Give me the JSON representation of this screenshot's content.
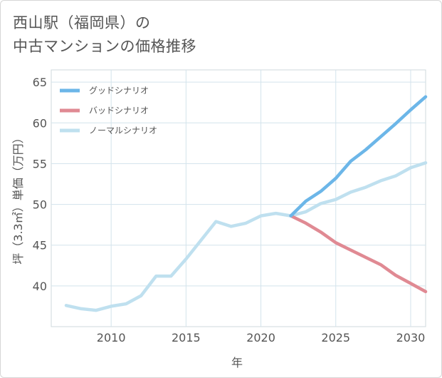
{
  "page": {
    "title_line1": "西山駅（福岡県）の",
    "title_line2": "中古マンションの価格推移"
  },
  "chart_data": {
    "type": "line",
    "xlabel": "年",
    "ylabel": "坪（3.3㎡）単価（万円）",
    "xlim": [
      2006,
      2031
    ],
    "ylim": [
      35,
      66.5
    ],
    "x_ticks": [
      2010,
      2015,
      2020,
      2025,
      2030
    ],
    "y_ticks": [
      40,
      45,
      50,
      55,
      60,
      65
    ],
    "grid": true,
    "legend_position": "top-left",
    "series": [
      {
        "name": "グッドシナリオ",
        "color": "#6cb6e8",
        "x": [
          2022,
          2023,
          2024,
          2025,
          2026,
          2027,
          2028,
          2029,
          2030,
          2031
        ],
        "y": [
          48.6,
          50.4,
          51.6,
          53.2,
          55.3,
          56.7,
          58.3,
          59.9,
          61.6,
          63.2
        ]
      },
      {
        "name": "バッドシナリオ",
        "color": "#e08a93",
        "x": [
          2022,
          2023,
          2024,
          2025,
          2026,
          2027,
          2028,
          2029,
          2030,
          2031
        ],
        "y": [
          48.6,
          47.7,
          46.6,
          45.3,
          44.4,
          43.5,
          42.6,
          41.3,
          40.3,
          39.3
        ]
      },
      {
        "name": "ノーマルシナリオ",
        "color": "#bfe0ef",
        "x": [
          2007,
          2008,
          2009,
          2010,
          2011,
          2012,
          2013,
          2014,
          2015,
          2016,
          2017,
          2018,
          2019,
          2020,
          2021,
          2022,
          2023,
          2024,
          2025,
          2026,
          2027,
          2028,
          2029,
          2030,
          2031
        ],
        "y": [
          37.6,
          37.2,
          37.0,
          37.5,
          37.8,
          38.8,
          41.2,
          41.2,
          43.3,
          45.6,
          47.9,
          47.3,
          47.7,
          48.6,
          48.9,
          48.6,
          49.1,
          50.1,
          50.6,
          51.5,
          52.1,
          52.9,
          53.5,
          54.5,
          55.1
        ]
      }
    ]
  }
}
